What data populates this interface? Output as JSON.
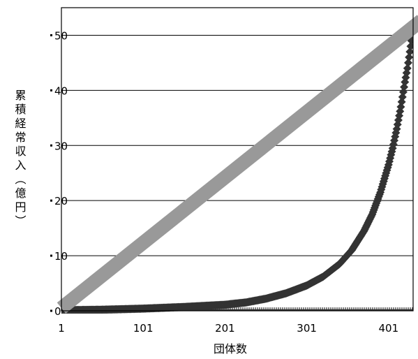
{
  "chart_data": {
    "type": "line",
    "title": "",
    "xlabel": "団体数",
    "ylabel": "累積経常収入（億円）",
    "xlim": [
      1,
      431
    ],
    "ylim": [
      0,
      55
    ],
    "x_ticks": [
      "1",
      "101",
      "201",
      "301",
      "401"
    ],
    "x_tick_values": [
      1,
      101,
      201,
      301,
      401
    ],
    "y_ticks": [
      "0",
      "10",
      "20",
      "30",
      "40",
      "50"
    ],
    "y_tick_values": [
      0,
      10,
      20,
      30,
      40,
      50
    ],
    "grid": "horizontal",
    "legend": "none",
    "series": [
      {
        "style": "thick-line",
        "color": "#999999",
        "x": [
          1,
          431
        ],
        "y": [
          0.5,
          52.5
        ]
      },
      {
        "style": "diamond-markers",
        "color": "#333333",
        "x": [
          1,
          51,
          101,
          151,
          201,
          226,
          251,
          276,
          301,
          321,
          341,
          356,
          371,
          381,
          391,
          401,
          406,
          411,
          416,
          421,
          424,
          426,
          428,
          429,
          430,
          431
        ],
        "y": [
          0.1,
          0.2,
          0.4,
          0.7,
          1.1,
          1.5,
          2.2,
          3.2,
          4.6,
          6.2,
          8.5,
          11.0,
          14.5,
          17.5,
          21.5,
          26.5,
          29.5,
          33.0,
          37.0,
          41.5,
          44.0,
          46.0,
          48.0,
          49.0,
          50.0,
          51.0
        ]
      },
      {
        "style": "baseline-ticks",
        "color": "#333333",
        "x": [
          1,
          431
        ],
        "y": [
          0,
          0
        ]
      }
    ]
  }
}
